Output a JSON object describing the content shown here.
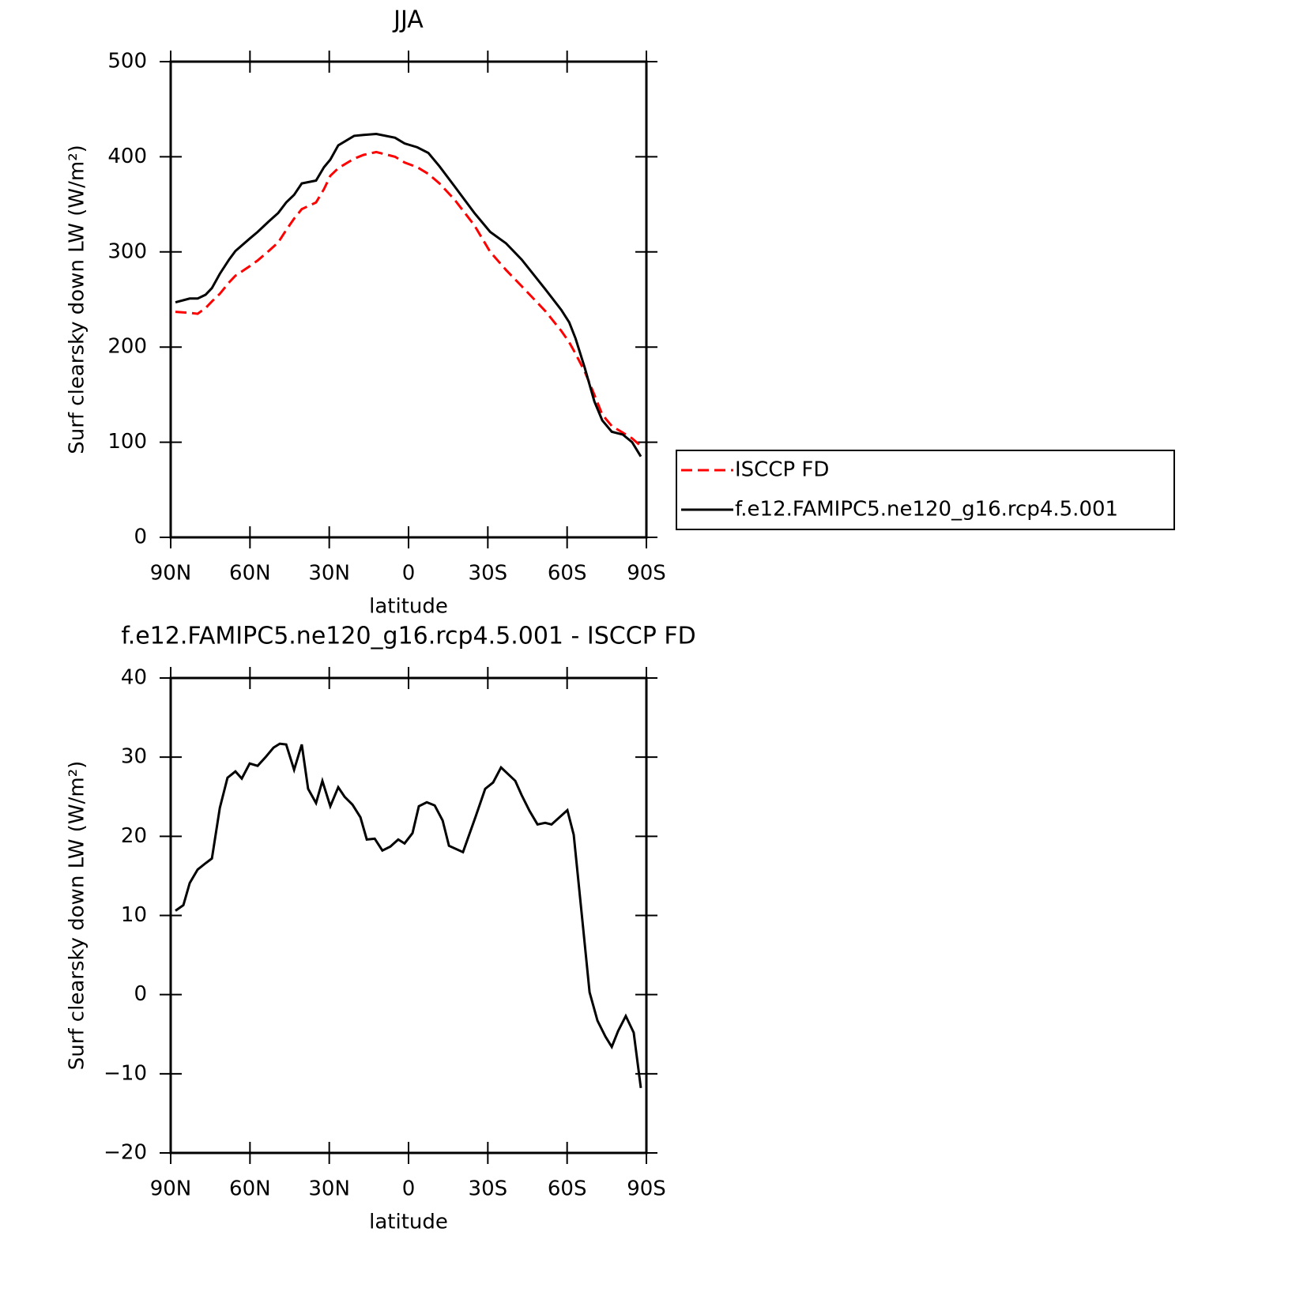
{
  "chart_data": [
    {
      "type": "line",
      "title": "JJA",
      "xlabel": "latitude",
      "ylabel": "Surf clearsky down LW (W/m²)",
      "x": [
        88.2,
        82.8,
        79.8,
        76.8,
        74.4,
        71.4,
        67.9,
        65.5,
        60.1,
        57.1,
        52.9,
        49.3,
        46.3,
        43.3,
        40.4,
        35.0,
        32.0,
        29.6,
        26.6,
        20.6,
        17.0,
        12.2,
        5.1,
        1.5,
        -3.3,
        -7.5,
        -11.7,
        -17.4,
        -24.9,
        -30.9,
        -36.9,
        -42.8,
        -51.7,
        -57.8,
        -60.8,
        -63.2,
        -66.7,
        -70.3,
        -73.3,
        -76.9,
        -81.1,
        -84.6,
        -87.9
      ],
      "series": [
        {
          "name": "ISCCP FD",
          "color": "#ff0000",
          "linestyle": "dashed",
          "values": [
            237,
            236,
            235,
            241,
            248,
            256,
            268,
            275,
            285,
            291,
            301,
            310,
            323,
            335,
            345,
            352,
            366,
            380,
            388,
            398,
            402,
            405,
            400,
            394,
            389,
            382,
            372,
            355,
            328,
            300,
            281,
            264,
            238,
            217,
            205,
            193,
            174,
            150,
            129,
            117,
            110,
            104,
            96
          ]
        },
        {
          "name": "f.e12.FAMIPC5.ne120_g16.rcp4.5.001",
          "color": "#000000",
          "linestyle": "solid",
          "values": [
            247,
            251,
            251,
            255,
            262,
            277,
            292,
            301,
            314,
            321,
            332,
            341,
            352,
            360,
            372,
            375,
            389,
            397,
            412,
            422,
            423,
            424,
            420,
            414,
            410,
            404,
            390,
            369,
            341,
            321,
            309,
            292,
            261,
            239,
            226,
            209,
            178,
            143,
            123,
            111,
            108,
            100,
            85
          ]
        }
      ],
      "xlim": [
        90,
        -90
      ],
      "xticks": [
        {
          "value": 90,
          "label": "90N"
        },
        {
          "value": 60,
          "label": "60N"
        },
        {
          "value": 30,
          "label": "30N"
        },
        0,
        {
          "value": -30,
          "label": "30S"
        },
        {
          "value": -60,
          "label": "60S"
        },
        {
          "value": -90,
          "label": "90S"
        }
      ],
      "ylim": [
        0,
        500
      ],
      "yticks": [
        0,
        100,
        200,
        300,
        400,
        500
      ],
      "legend": "right outside"
    },
    {
      "type": "line",
      "title": "f.e12.FAMIPC5.ne120_g16.rcp4.5.001 - ISCCP FD",
      "xlabel": "latitude",
      "ylabel": "Surf clearsky down LW (W/m²)",
      "x": [
        88.2,
        85.2,
        82.8,
        79.8,
        76.8,
        74.4,
        71.4,
        68.5,
        65.5,
        63.1,
        60.1,
        57.1,
        54.1,
        51.1,
        48.7,
        46.3,
        43.3,
        40.4,
        38.0,
        35.0,
        32.6,
        29.6,
        26.6,
        24.2,
        21.2,
        18.2,
        15.8,
        12.8,
        9.9,
        6.9,
        3.9,
        1.5,
        -1.5,
        -3.9,
        -6.9,
        -9.9,
        -12.9,
        -15.3,
        -20.6,
        -25.4,
        -29.0,
        -32.0,
        -35.0,
        -40.4,
        -42.8,
        -45.8,
        -48.8,
        -51.7,
        -54.1,
        -60.1,
        -62.5,
        -66.1,
        -68.5,
        -71.5,
        -74.5,
        -76.9,
        -79.3,
        -82.2,
        -85.2,
        -87.9
      ],
      "series": [
        {
          "name": "f.e12.FAMIPC5.ne120_g16.rcp4.5.001 - ISCCP FD",
          "color": "#000000",
          "linestyle": "solid",
          "values": [
            10.6,
            11.3,
            14.1,
            15.8,
            16.6,
            17.2,
            23.6,
            27.4,
            28.2,
            27.3,
            29.2,
            28.9,
            30,
            31.2,
            31.7,
            31.6,
            28.4,
            31.6,
            26.0,
            24.2,
            27.0,
            23.8,
            26.2,
            25,
            24.0,
            22.4,
            19.6,
            19.7,
            18.2,
            18.7,
            19.6,
            19.1,
            20.4,
            23.8,
            24.3,
            23.9,
            22.0,
            18.8,
            18.0,
            22.5,
            26.0,
            26.8,
            28.7,
            27.0,
            25.2,
            23.2,
            21.5,
            21.7,
            21.5,
            23.3,
            20.2,
            8.3,
            0.3,
            -3.3,
            -5.3,
            -6.6,
            -4.6,
            -2.7,
            -4.8,
            -11.8
          ]
        }
      ],
      "xlim": [
        90,
        -90
      ],
      "xticks": [
        {
          "value": 90,
          "label": "90N"
        },
        {
          "value": 60,
          "label": "60N"
        },
        {
          "value": 30,
          "label": "30N"
        },
        0,
        {
          "value": -30,
          "label": "30S"
        },
        {
          "value": -60,
          "label": "60S"
        },
        {
          "value": -90,
          "label": "90S"
        }
      ],
      "ylim": [
        -20,
        40
      ],
      "yticks": [
        {
          "value": -20,
          "label": "−20"
        },
        {
          "value": -10,
          "label": "−10"
        },
        0,
        10,
        20,
        30,
        40
      ]
    }
  ]
}
